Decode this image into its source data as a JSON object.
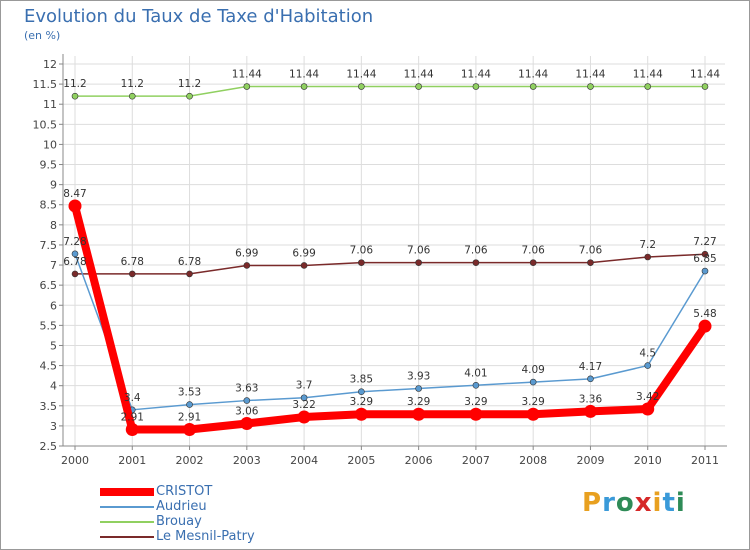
{
  "title": "Evolution du Taux de Taxe d'Habitation",
  "subtitle": "(en %)",
  "logo": {
    "text": "Proxiti",
    "colors": [
      "#e8a020",
      "#3a9ad9",
      "#2e8b57",
      "#d62828",
      "#e8a020",
      "#3a9ad9",
      "#2e8b57"
    ]
  },
  "chart_data": {
    "type": "line",
    "x": [
      "2000",
      "2001",
      "2002",
      "2003",
      "2004",
      "2005",
      "2006",
      "2007",
      "2008",
      "2009",
      "2010",
      "2011"
    ],
    "ylim": [
      2.5,
      12
    ],
    "yticks": [
      "2.5",
      "3",
      "3.5",
      "4",
      "4.5",
      "5",
      "5.5",
      "6",
      "6.5",
      "7",
      "7.5",
      "8",
      "8.5",
      "9",
      "9.5",
      "10",
      "10.5",
      "11",
      "11.5",
      "12"
    ],
    "grid": true,
    "legend_position": "bottom-left",
    "series": [
      {
        "name": "Brouay",
        "color": "#90d060",
        "values": [
          11.2,
          11.2,
          11.2,
          11.44,
          11.44,
          11.44,
          11.44,
          11.44,
          11.44,
          11.44,
          11.44,
          11.44
        ],
        "labels": [
          "11.2",
          "11.2",
          "11.2",
          "11.44",
          "11.44",
          "11.44",
          "11.44",
          "11.44",
          "11.44",
          "11.44",
          "11.44",
          "11.44"
        ]
      },
      {
        "name": "Le Mesnil-Patry",
        "color": "#7a2a2a",
        "values": [
          6.78,
          6.78,
          6.78,
          6.99,
          6.99,
          7.06,
          7.06,
          7.06,
          7.06,
          7.06,
          7.2,
          7.27
        ],
        "labels": [
          "6.78",
          "6.78",
          "6.78",
          "6.99",
          "6.99",
          "7.06",
          "7.06",
          "7.06",
          "7.06",
          "7.06",
          "7.2",
          "7.27"
        ]
      },
      {
        "name": "Audrieu",
        "color": "#5a9ad0",
        "values": [
          7.28,
          3.4,
          3.53,
          3.63,
          3.7,
          3.85,
          3.93,
          4.01,
          4.09,
          4.17,
          4.5,
          6.85
        ],
        "labels": [
          "7.28",
          "3.4",
          "3.53",
          "3.63",
          "3.7",
          "3.85",
          "3.93",
          "4.01",
          "4.09",
          "4.17",
          "4.5",
          "6.85"
        ]
      },
      {
        "name": "CRISTOT",
        "color": "#ff0000",
        "values": [
          8.47,
          2.91,
          2.91,
          3.06,
          3.22,
          3.29,
          3.29,
          3.29,
          3.29,
          3.36,
          3.42,
          5.48
        ],
        "labels": [
          "8.47",
          "2.91",
          "2.91",
          "3.06",
          "3.22",
          "3.29",
          "3.29",
          "3.29",
          "3.29",
          "3.36",
          "3.42",
          "5.48"
        ]
      }
    ],
    "legend": [
      {
        "name": "CRISTOT",
        "color": "#ff0000"
      },
      {
        "name": "Audrieu",
        "color": "#5a9ad0"
      },
      {
        "name": "Brouay",
        "color": "#90d060"
      },
      {
        "name": "Le Mesnil-Patry",
        "color": "#7a2a2a"
      }
    ]
  }
}
